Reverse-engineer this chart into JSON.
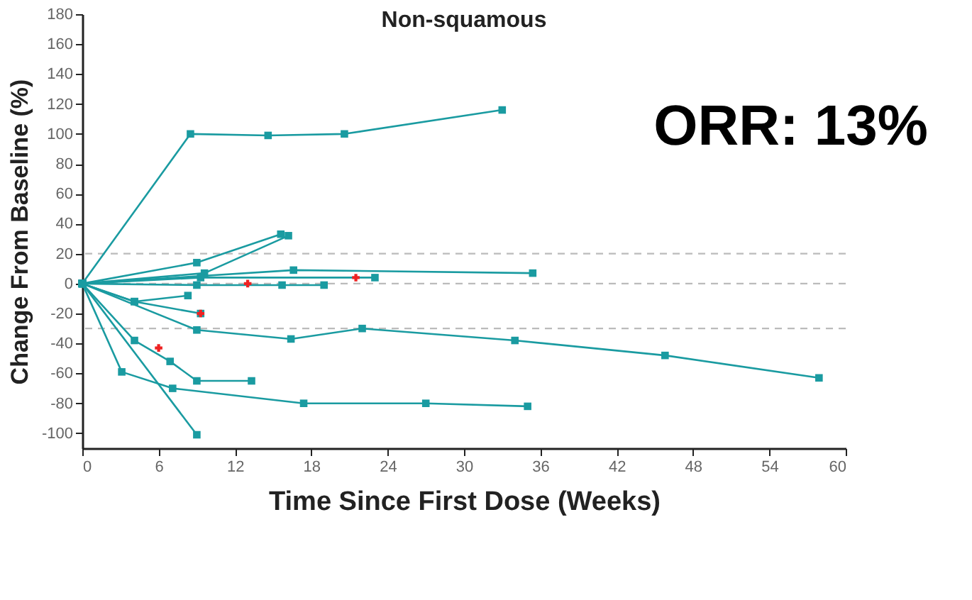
{
  "chart_data": {
    "type": "line",
    "title": "Non-squamous",
    "xlabel": "Time Since First Dose (Weeks)",
    "ylabel": "Change From Baseline (%)",
    "annotations": [
      "ORR: 13%"
    ],
    "xlim": [
      0,
      60
    ],
    "xticks": [
      0,
      6,
      12,
      18,
      24,
      30,
      36,
      42,
      48,
      54,
      60
    ],
    "ylim": [
      -110,
      180
    ],
    "yticks": [
      -100,
      -80,
      -60,
      -40,
      -20,
      0,
      20,
      40,
      60,
      80,
      100,
      120,
      140,
      160,
      180
    ],
    "marker": "square",
    "line_style": "solid",
    "ref_lines": [
      {
        "axis": "y",
        "value": 20,
        "color": "#bbbbbb",
        "line_style": "dashed"
      },
      {
        "axis": "y",
        "value": 0,
        "color": "#bbbbbb",
        "line_style": "dashed"
      },
      {
        "axis": "y",
        "value": -30,
        "color": "#bbbbbb",
        "line_style": "dashed"
      }
    ],
    "series": [
      {
        "color": "#1a9ba1",
        "x": [
          0,
          8.5,
          14.6,
          20.6,
          33
        ],
        "values": [
          0,
          100,
          99,
          100,
          116
        ]
      },
      {
        "color": "#1a9ba1",
        "x": [
          0,
          9,
          15.6
        ],
        "values": [
          0,
          14,
          33
        ]
      },
      {
        "color": "#1a9ba1",
        "x": [
          0,
          9.6,
          16.2
        ],
        "values": [
          0,
          7,
          32
        ]
      },
      {
        "color": "#1a9ba1",
        "x": [
          0,
          16.6,
          35.4
        ],
        "values": [
          0,
          9,
          7
        ]
      },
      {
        "color": "#1a9ba1",
        "x": [
          0,
          9,
          15.7,
          19
        ],
        "values": [
          0,
          -1,
          -1,
          -1
        ]
      },
      {
        "color": "#1a9ba1",
        "x": [
          0,
          9.3,
          23
        ],
        "values": [
          0,
          4,
          4
        ]
      },
      {
        "color": "#1a9ba1",
        "x": [
          0,
          4.1,
          8.3
        ],
        "values": [
          0,
          -12,
          -8
        ]
      },
      {
        "color": "#1a9ba1",
        "x": [
          0,
          4.1,
          9.3
        ],
        "values": [
          0,
          -12,
          -20
        ]
      },
      {
        "color": "#1a9ba1",
        "x": [
          0,
          9,
          16.4,
          22,
          34,
          45.8,
          57.9
        ],
        "values": [
          0,
          -31,
          -37,
          -30,
          -38,
          -48,
          -63
        ]
      },
      {
        "color": "#1a9ba1",
        "x": [
          0,
          4.1,
          6.9,
          9,
          13.3
        ],
        "values": [
          0,
          -38,
          -52,
          -65,
          -65
        ]
      },
      {
        "color": "#1a9ba1",
        "x": [
          0,
          3.1,
          7.1,
          17.4,
          27,
          35
        ],
        "values": [
          0,
          -59,
          -70,
          -80,
          -80,
          -82
        ]
      },
      {
        "color": "#1a9ba1",
        "x": [
          0,
          9
        ],
        "values": [
          0,
          -101
        ]
      },
      {
        "type": "scatter",
        "marker": "cross",
        "color": "#ee2222",
        "x": [
          13,
          21.5,
          9.3,
          6
        ],
        "values": [
          0,
          4,
          -20,
          -43
        ]
      }
    ]
  }
}
